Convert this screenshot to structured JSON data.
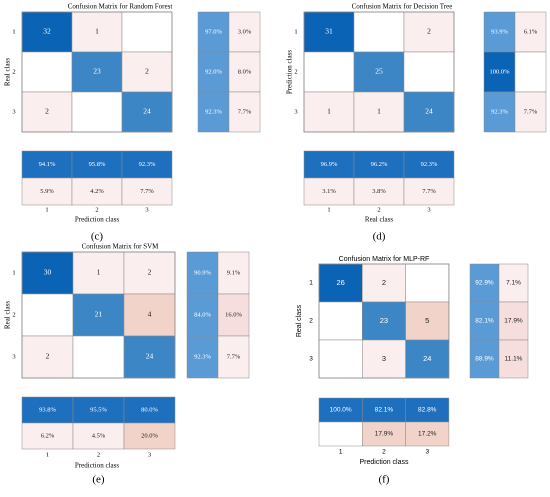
{
  "figure": {
    "panel_labels": [
      "(c)",
      "(d)",
      "(e)",
      "(f)"
    ]
  },
  "colors": {
    "dark_blue": "#0b63b5",
    "mid_blue": "#3d86c6",
    "light_blue": "#5b9bd5",
    "blue_stat": "#1f6fbf",
    "light_pink": "#fbeeee",
    "pink": "#f6dede",
    "salmon": "#f2d3c9",
    "white": "#ffffff",
    "border": "#8a8a8a"
  },
  "chart_data": [
    {
      "type": "heatmap",
      "title": "Confusion Matrix for Random Forest",
      "font": "serif",
      "ylabel": "Real class",
      "xlabel": "Prediction class",
      "classes": [
        "1",
        "2",
        "3"
      ],
      "matrix": [
        [
          "32",
          "1",
          ""
        ],
        [
          "",
          "23",
          "2"
        ],
        [
          "2",
          "",
          "24"
        ]
      ],
      "row_summary": [
        [
          "97.0%",
          "3.0%"
        ],
        [
          "92.0%",
          "8.0%"
        ],
        [
          "92.3%",
          "7.7%"
        ]
      ],
      "col_summary": [
        [
          "94.1%",
          "95.8%",
          "92.3%"
        ],
        [
          "5.9%",
          "4.2%",
          "7.7%"
        ]
      ]
    },
    {
      "type": "heatmap",
      "title": "Confusion Matrix for Decision Tree",
      "font": "serif",
      "ylabel": "Prediction class",
      "xlabel": "Real class",
      "classes": [
        "1",
        "2",
        "3"
      ],
      "matrix": [
        [
          "31",
          "",
          "2"
        ],
        [
          "",
          "25",
          ""
        ],
        [
          "1",
          "1",
          "24"
        ]
      ],
      "row_summary": [
        [
          "93.9%",
          "6.1%"
        ],
        [
          "100.0%",
          ""
        ],
        [
          "92.3%",
          "7.7%"
        ]
      ],
      "col_summary": [
        [
          "96.9%",
          "96.2%",
          "92.3%"
        ],
        [
          "3.1%",
          "3.8%",
          "7.7%"
        ]
      ]
    },
    {
      "type": "heatmap",
      "title": "Confusion Matrix for SVM",
      "font": "serif",
      "ylabel": "Real class",
      "xlabel": "Prediction class",
      "classes": [
        "1",
        "2",
        "3"
      ],
      "matrix": [
        [
          "30",
          "1",
          "2"
        ],
        [
          "",
          "21",
          "4"
        ],
        [
          "2",
          "",
          "24"
        ]
      ],
      "row_summary": [
        [
          "90.9%",
          "9.1%"
        ],
        [
          "84.0%",
          "16.0%"
        ],
        [
          "92.3%",
          "7.7%"
        ]
      ],
      "col_summary": [
        [
          "93.8%",
          "95.5%",
          "80.0%"
        ],
        [
          "6.2%",
          "4.5%",
          "20.0%"
        ]
      ]
    },
    {
      "type": "heatmap",
      "title": "Confusion Matrix for MLP-RF",
      "font": "sans",
      "ylabel": "Real class",
      "xlabel": "Prediction class",
      "classes": [
        "1",
        "2",
        "3"
      ],
      "matrix": [
        [
          "26",
          "2",
          ""
        ],
        [
          "",
          "23",
          "5"
        ],
        [
          "",
          "3",
          "24"
        ]
      ],
      "row_summary": [
        [
          "92.9%",
          "7.1%"
        ],
        [
          "82.1%",
          "17.9%"
        ],
        [
          "88.9%",
          "11.1%"
        ]
      ],
      "col_summary": [
        [
          "100.0%",
          "82.1%",
          "82.8%"
        ],
        [
          "",
          "17.9%",
          "17.2%"
        ]
      ]
    }
  ]
}
